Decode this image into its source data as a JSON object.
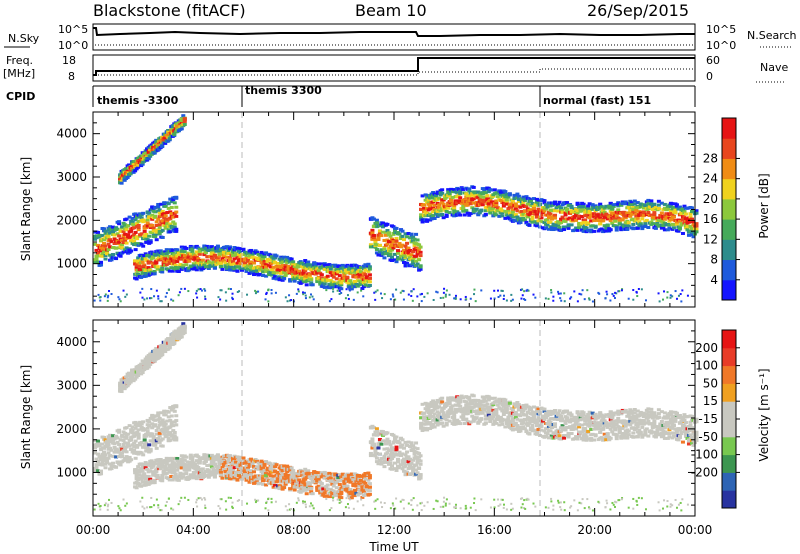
{
  "header": {
    "station_title": "Blackstone (fitACF)",
    "beam": "Beam 10",
    "date": "26/Sep/2015"
  },
  "header_panels": {
    "nsky_label": "N.Sky",
    "nsky_ticks": [
      "10^5",
      "10^0"
    ],
    "nsearch_label": "N.Search",
    "nsearch_ticks": [
      "10^5",
      "10^0"
    ],
    "freq_label": "Freq.",
    "freq_unit": "[MHz]",
    "freq_ticks": [
      "18",
      "8"
    ],
    "nave_label": "Nave",
    "nave_ticks": [
      "60",
      "0"
    ],
    "cpid_label": "CPID",
    "cpid_segments": [
      {
        "label": "themis -3300",
        "start": 0,
        "end": 6
      },
      {
        "label": "themis 3300",
        "start": 6,
        "end": 18
      },
      {
        "label": "normal (fast) 151",
        "start": 18,
        "end": 24
      }
    ]
  },
  "chart_data": [
    {
      "type": "heatmap",
      "name": "Power",
      "x_range": [
        0,
        24
      ],
      "xticks": [
        "00:00",
        "04:00",
        "08:00",
        "12:00",
        "16:00",
        "20:00",
        "00:00"
      ],
      "ylabel": "Slant Range [km]",
      "yticks": [
        "1000",
        "2000",
        "3000",
        "4000"
      ],
      "ylim": [
        0,
        4500
      ],
      "colorbar": {
        "label": "Power [dB]",
        "ticks": [
          "4",
          "8",
          "12",
          "16",
          "20",
          "24",
          "28"
        ],
        "colors": [
          "#1414ff",
          "#1e5adc",
          "#2d8c8c",
          "#46aa5a",
          "#8cc83c",
          "#f0d21e",
          "#f08c14",
          "#e8461e",
          "#e61414"
        ]
      }
    },
    {
      "type": "heatmap",
      "name": "Velocity",
      "x_range": [
        0,
        24
      ],
      "xticks": [
        "00:00",
        "04:00",
        "08:00",
        "12:00",
        "16:00",
        "20:00",
        "00:00"
      ],
      "xlabel": "Time UT",
      "ylabel": "Slant Range [km]",
      "yticks": [
        "1000",
        "2000",
        "3000",
        "4000"
      ],
      "ylim": [
        0,
        4500
      ],
      "colorbar": {
        "label": "Velocity [m s⁻¹]",
        "ticks": [
          "200",
          "100",
          "50",
          "15",
          "-15",
          "-50",
          "-100",
          "-200"
        ],
        "colors": [
          "#2833a0",
          "#2d64b4",
          "#3c9650",
          "#78c850",
          "#c8c8c0",
          "#c8c8c0",
          "#f0a020",
          "#f07828",
          "#e83c28",
          "#e61414"
        ]
      }
    }
  ]
}
